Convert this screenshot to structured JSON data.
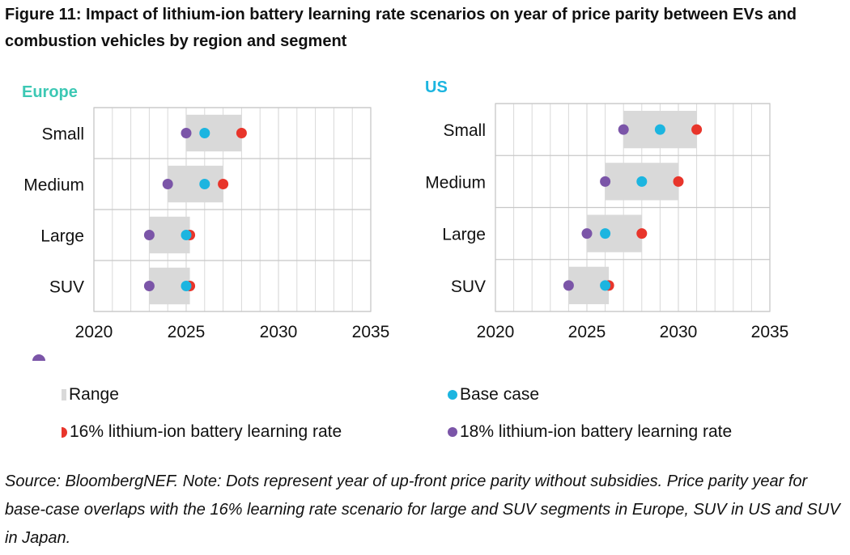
{
  "figure": {
    "title": "Figure 11: Impact of lithium-ion battery learning rate scenarios on year of price parity between EVs and combustion vehicles by region and segment",
    "source_note": "Source: BloombergNEF. Note: Dots represent year of up-front price parity without subsidies. Price parity year for base-case overlaps with the 16% learning rate scenario for large and SUV segments in Europe, SUV in US and SUV in Japan."
  },
  "colors": {
    "range": "#d9d9d9",
    "base_case": "#1cb5e0",
    "lr16": "#e8352b",
    "lr18": "#7b55a8",
    "europe_title": "#3cc8b4",
    "us_title": "#1cb5e0",
    "grid": "#d9d9d9"
  },
  "legend": {
    "range": "Range",
    "base_case": "Base case",
    "lr16": "16% lithium-ion battery learning rate",
    "lr18": "18% lithium-ion battery learning rate"
  },
  "chart_data": [
    {
      "type": "dot-range",
      "title": "Europe",
      "categories": [
        "Small",
        "Medium",
        "Large",
        "SUV"
      ],
      "xlim": [
        2020,
        2035
      ],
      "xticks": [
        2020,
        2025,
        2030,
        2035
      ],
      "grid": true,
      "range": [
        [
          2025,
          2028
        ],
        [
          2024,
          2027
        ],
        [
          2023,
          2025.2
        ],
        [
          2023,
          2025.2
        ]
      ],
      "series": [
        {
          "name": "Base case",
          "key": "base_case",
          "values": [
            2026,
            2026,
            2025,
            2025
          ]
        },
        {
          "name": "16% lithium-ion battery learning rate",
          "key": "lr16",
          "values": [
            2028,
            2027,
            2025.2,
            2025.2
          ]
        },
        {
          "name": "18% lithium-ion battery learning rate",
          "key": "lr18",
          "values": [
            2025,
            2024,
            2023,
            2023
          ]
        }
      ]
    },
    {
      "type": "dot-range",
      "title": "US",
      "categories": [
        "Small",
        "Medium",
        "Large",
        "SUV"
      ],
      "xlim": [
        2020,
        2035
      ],
      "xticks": [
        2020,
        2025,
        2030,
        2035
      ],
      "grid": true,
      "range": [
        [
          2027,
          2031
        ],
        [
          2026,
          2030
        ],
        [
          2025,
          2028
        ],
        [
          2024,
          2026.2
        ]
      ],
      "series": [
        {
          "name": "Base case",
          "key": "base_case",
          "values": [
            2029,
            2028,
            2026,
            2026
          ]
        },
        {
          "name": "16% lithium-ion battery learning rate",
          "key": "lr16",
          "values": [
            2031,
            2030,
            2028,
            2026.2
          ]
        },
        {
          "name": "18% lithium-ion battery learning rate",
          "key": "lr18",
          "values": [
            2027,
            2026,
            2025,
            2024
          ]
        }
      ]
    }
  ]
}
